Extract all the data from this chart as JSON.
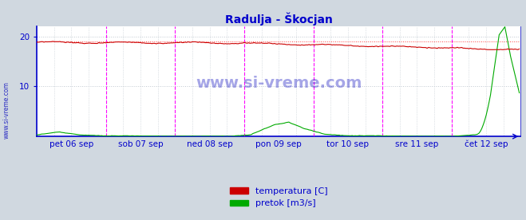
{
  "title": "Radulja - Škocjan",
  "title_color": "#0000cc",
  "background_color": "#d0d8e0",
  "plot_bg_color": "#ffffff",
  "grid_color": "#c0c8d0",
  "axis_color": "#0000cc",
  "tick_label_color": "#0000cc",
  "watermark_text": "www.si-vreme.com",
  "watermark_color": "#0000bb",
  "xlim": [
    0,
    336
  ],
  "ylim": [
    0,
    22
  ],
  "yticks": [
    10,
    20
  ],
  "x_tick_labels": [
    "pet 06 sep",
    "sob 07 sep",
    "ned 08 sep",
    "pon 09 sep",
    "tor 10 sep",
    "sre 11 sep",
    "čet 12 sep"
  ],
  "x_tick_positions": [
    24,
    72,
    120,
    168,
    216,
    264,
    312
  ],
  "vline_color": "#ff00ff",
  "vline_positions": [
    48,
    96,
    144,
    192,
    240,
    288
  ],
  "hline_color": "#ff4040",
  "hline_y": 19.0,
  "temp_color": "#cc0000",
  "flow_color": "#00aa00",
  "legend_labels": [
    "temperatura [C]",
    "pretok [m3/s]"
  ],
  "legend_colors": [
    "#cc0000",
    "#00aa00"
  ],
  "figsize": [
    6.59,
    2.76
  ],
  "dpi": 100
}
